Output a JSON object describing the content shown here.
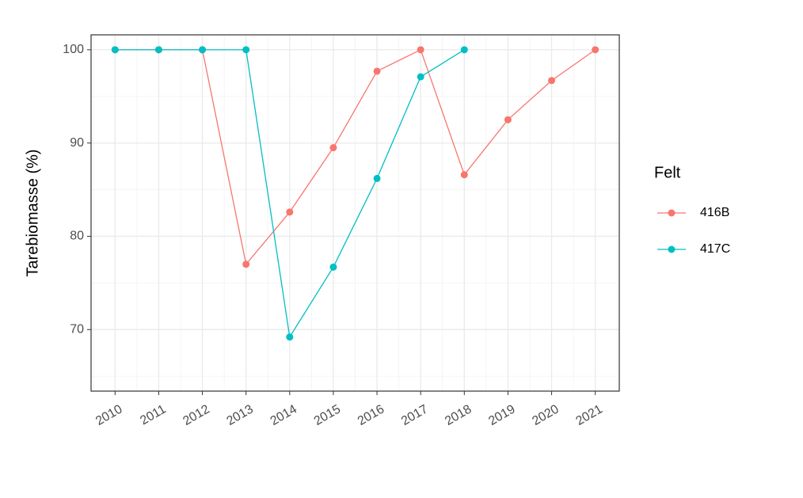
{
  "chart_data": {
    "type": "line",
    "y_label": "Tarebiomasse (%)",
    "legend_title": "Felt",
    "x": [
      2010,
      2011,
      2012,
      2013,
      2014,
      2015,
      2016,
      2017,
      2018,
      2019,
      2020,
      2021
    ],
    "series": [
      {
        "name": "416B",
        "color": "#f8766d",
        "values": [
          100,
          100,
          100,
          77,
          82.6,
          89.5,
          97.7,
          100,
          86.6,
          92.5,
          96.7,
          100
        ]
      },
      {
        "name": "417C",
        "color": "#00bfc4",
        "values": [
          100,
          100,
          100,
          100,
          69.2,
          76.7,
          86.2,
          97.1,
          100,
          null,
          null,
          null
        ]
      }
    ],
    "xlim": [
      2009.45,
      2021.55
    ],
    "xticks": [
      2010,
      2011,
      2012,
      2013,
      2014,
      2015,
      2016,
      2017,
      2018,
      2019,
      2020,
      2021
    ],
    "ylim": [
      63.4,
      101.6
    ],
    "yticks": [
      70,
      80,
      90,
      100
    ],
    "grid": true,
    "legend_position": "right"
  }
}
